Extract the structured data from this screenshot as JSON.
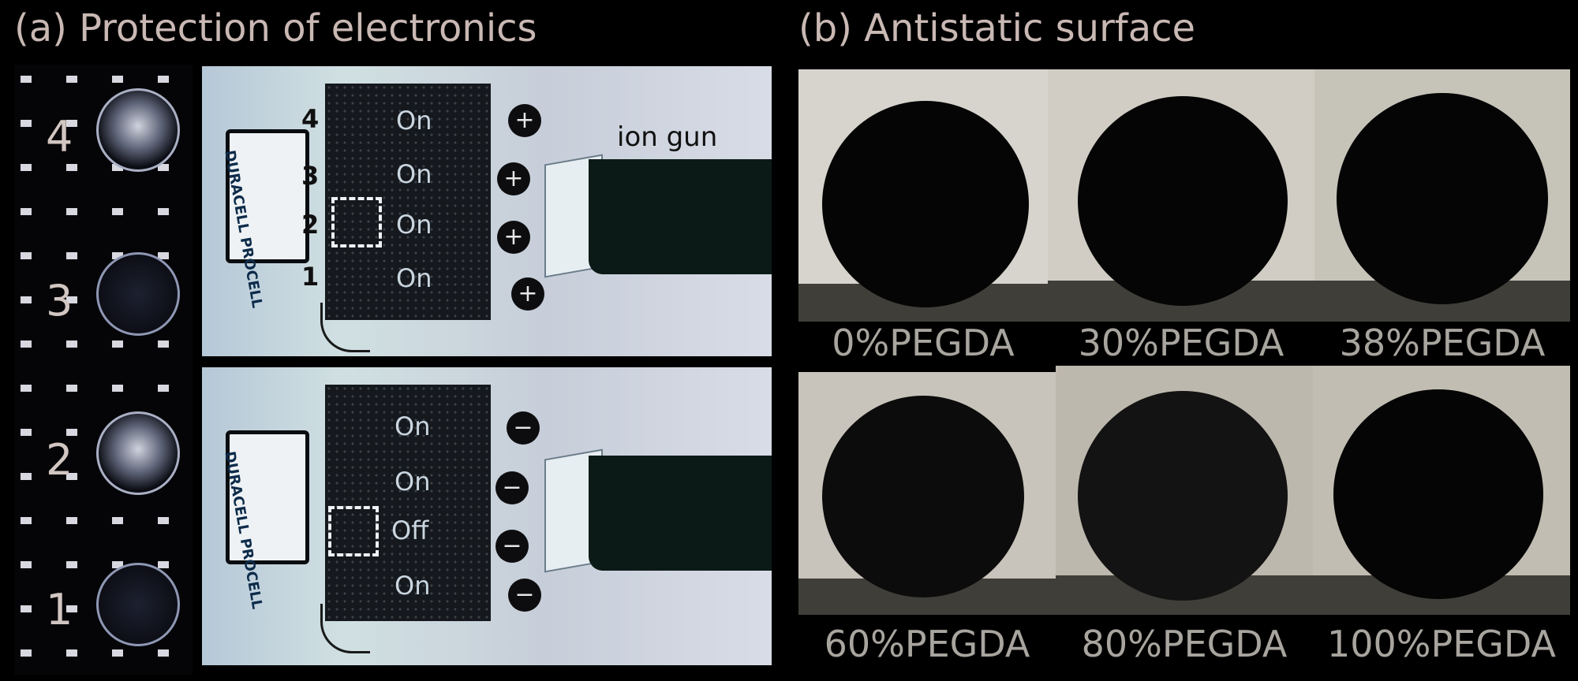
{
  "panel_a": {
    "title": "(a) Protection of electronics",
    "led_labels": [
      "4",
      "3",
      "2",
      "1"
    ],
    "top": {
      "switch_labels": [
        "On",
        "On",
        "On",
        "On"
      ],
      "switch_indices": [
        "4",
        "3",
        "2",
        "1"
      ],
      "charges": [
        "+",
        "+",
        "+",
        "+"
      ],
      "battery_brand": "DURACELL PROCELL"
    },
    "bottom": {
      "switch_labels": [
        "On",
        "On",
        "Off",
        "On"
      ],
      "charges": [
        "−",
        "−",
        "−",
        "−"
      ],
      "battery_brand": "DURACELL PROCELL"
    },
    "gun_label": "ion gun"
  },
  "panel_b": {
    "title": "(b) Antistatic surface",
    "samples": [
      {
        "label": "0%PEGDA"
      },
      {
        "label": "30%PEGDA"
      },
      {
        "label": "38%PEGDA"
      },
      {
        "label": "60%PEGDA"
      },
      {
        "label": "80%PEGDA"
      },
      {
        "label": "100%PEGDA"
      }
    ]
  },
  "colors": {
    "background": "#000000",
    "title_text": "#c9b8b3",
    "caption_text": "#a8a49e"
  }
}
